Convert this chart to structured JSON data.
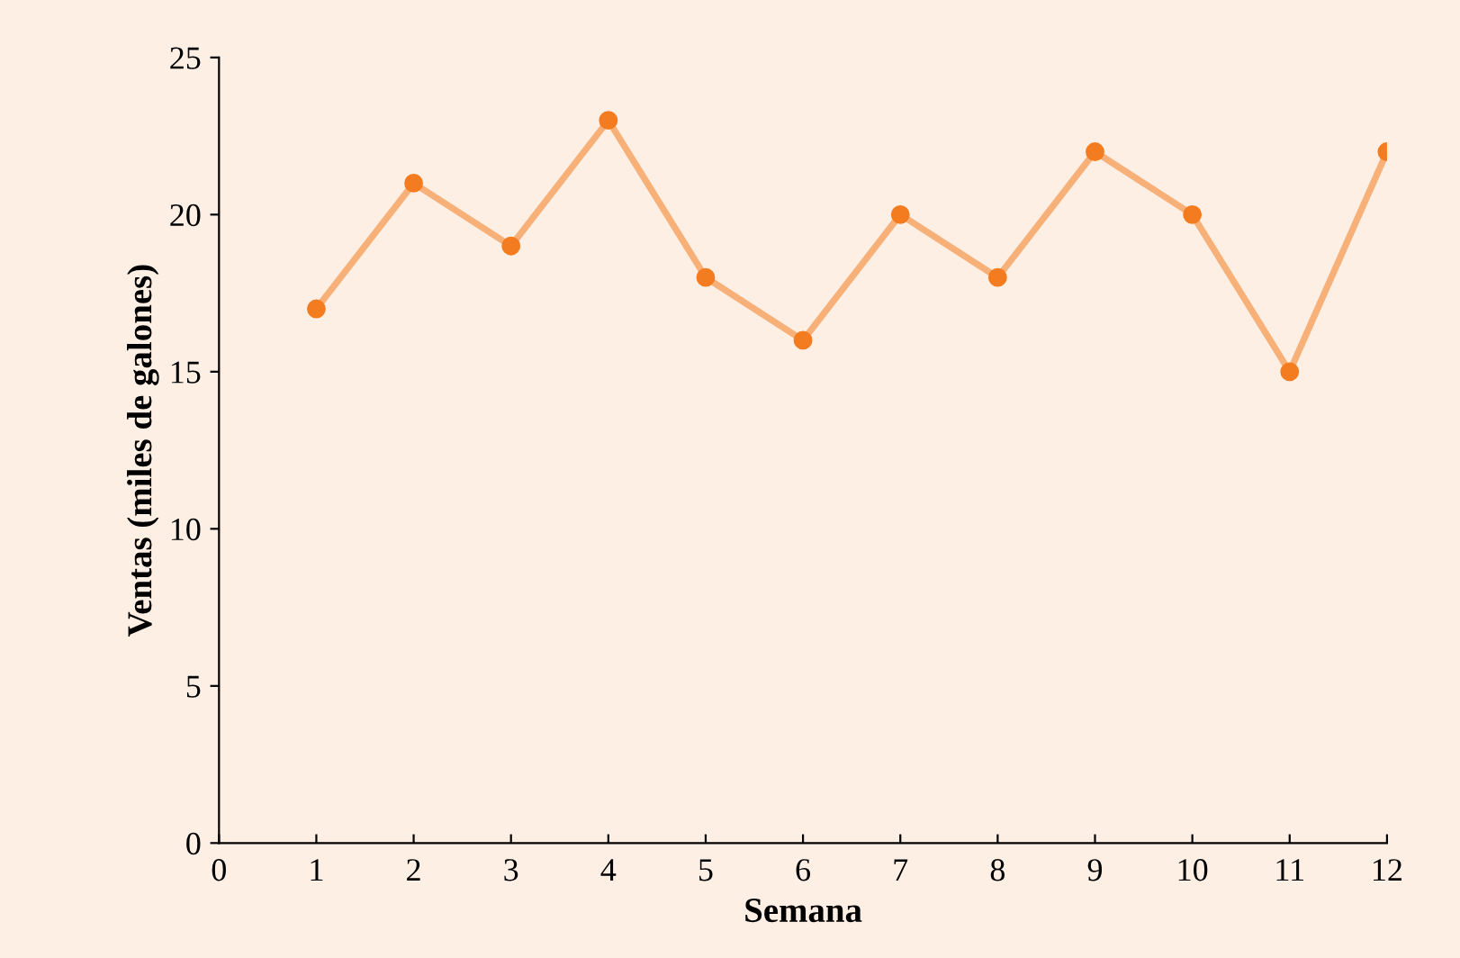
{
  "chart_data": {
    "type": "line",
    "xlabel": "Semana",
    "ylabel": "Ventas (miles de galones)",
    "x": [
      1,
      2,
      3,
      4,
      5,
      6,
      7,
      8,
      9,
      10,
      11,
      12
    ],
    "series": [
      {
        "color": "#f47c20",
        "values": [
          17,
          21,
          19,
          23,
          18,
          16,
          20,
          18,
          22,
          20,
          15,
          22
        ]
      }
    ],
    "xlim": [
      0,
      12
    ],
    "xticks": [
      0,
      1,
      2,
      3,
      4,
      5,
      6,
      7,
      8,
      9,
      10,
      11,
      12
    ],
    "ylim": [
      0,
      25
    ],
    "yticks": [
      0,
      5,
      10,
      15,
      20,
      25
    ],
    "marker": "circle",
    "line_style": "solid",
    "grid": false,
    "legend": false
  }
}
